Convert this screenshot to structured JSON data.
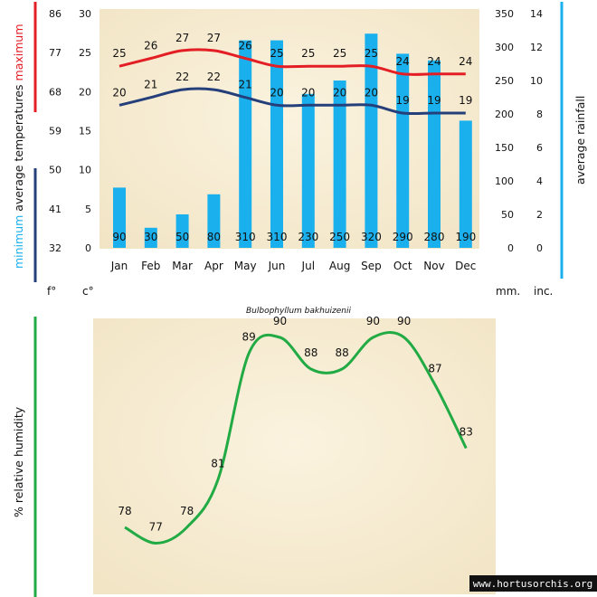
{
  "chart_data": [
    {
      "type": "bar+line",
      "categories": [
        "Jan",
        "Feb",
        "Mar",
        "Apr",
        "May",
        "Jun",
        "Jul",
        "Aug",
        "Sep",
        "Oct",
        "Nov",
        "Dec"
      ],
      "rainfall_mm": [
        90,
        30,
        50,
        80,
        310,
        310,
        230,
        250,
        320,
        290,
        280,
        190
      ],
      "max_temp_c": [
        25,
        26,
        27,
        27,
        26,
        25,
        25,
        25,
        25,
        24,
        24,
        24
      ],
      "min_temp_c": [
        20,
        21,
        22,
        22,
        21,
        20,
        20,
        20,
        20,
        19,
        19,
        19
      ],
      "axes": {
        "fahrenheit_ticks": [
          "86",
          "77",
          "68",
          "59",
          "50",
          "41",
          "32"
        ],
        "celsius_ticks": [
          "30",
          "25",
          "20",
          "15",
          "10",
          "5",
          "0"
        ],
        "mm_ticks": [
          "350",
          "300",
          "250",
          "200",
          "150",
          "100",
          "50",
          "0"
        ],
        "inch_ticks": [
          "14",
          "12",
          "10",
          "8",
          "6",
          "4",
          "2",
          "0"
        ],
        "ylim_c": [
          0,
          30
        ],
        "ylim_mm": [
          0,
          350
        ]
      },
      "labels": {
        "left_maximum": "maximum",
        "left_average_temps": "average  temperatures",
        "left_minimum": "minimum",
        "right": "average rainfall",
        "unit_f": "f°",
        "unit_c": "c°",
        "unit_mm": "mm.",
        "unit_inc": "inc.",
        "species": "Bulbophyllum bakhuizenii"
      },
      "colors": {
        "bar": "#1ab0ee",
        "max_line": "#e31e24",
        "min_line": "#243f7a",
        "left_max_bar": "#e31e24",
        "left_min_bar": "#243f7a",
        "right_bar": "#1ab0ee"
      }
    },
    {
      "type": "line",
      "categories": [
        "Jan",
        "Feb",
        "Mar",
        "Apr",
        "May",
        "Jun",
        "Jul",
        "Aug",
        "Sep",
        "Oct",
        "Nov",
        "Dec"
      ],
      "humidity_pct": [
        78,
        77,
        78,
        81,
        89,
        90,
        88,
        88,
        90,
        90,
        87,
        83
      ],
      "ylabel": "%  relative humidity",
      "colors": {
        "line": "#22aa44",
        "axis_bar": "#22aa44"
      }
    }
  ],
  "watermark": "www.hortusorchis.org",
  "colors": {
    "parchment": "#f8eed6",
    "parchment_dark": "#efe2c4"
  }
}
